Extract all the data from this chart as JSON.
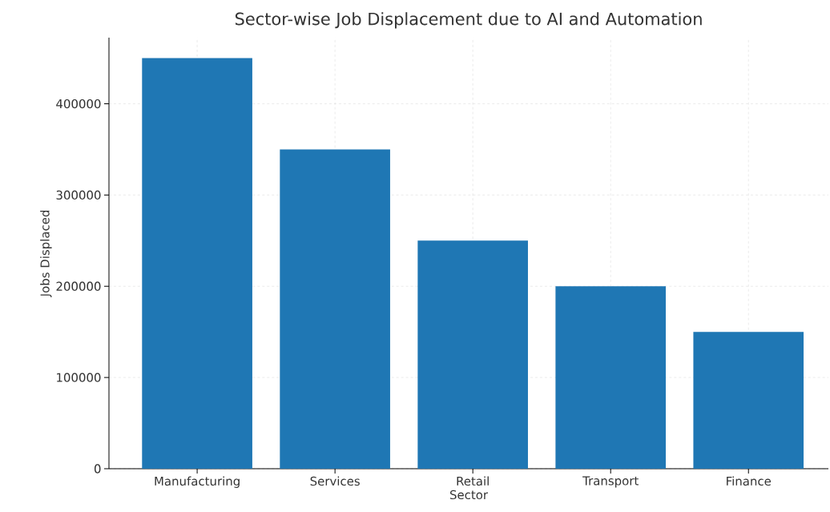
{
  "chart_data": {
    "type": "bar",
    "title": "Sector-wise Job Displacement due to AI and Automation",
    "xlabel": "Sector",
    "ylabel": "Jobs Displaced",
    "categories": [
      "Manufacturing",
      "Services",
      "Retail",
      "Transport",
      "Finance"
    ],
    "values": [
      450000,
      350000,
      250000,
      200000,
      150000
    ],
    "color": "#1f77b4",
    "ylim": [
      0,
      472500
    ],
    "yticks": [
      0,
      100000,
      200000,
      300000,
      400000
    ],
    "grid": true
  }
}
